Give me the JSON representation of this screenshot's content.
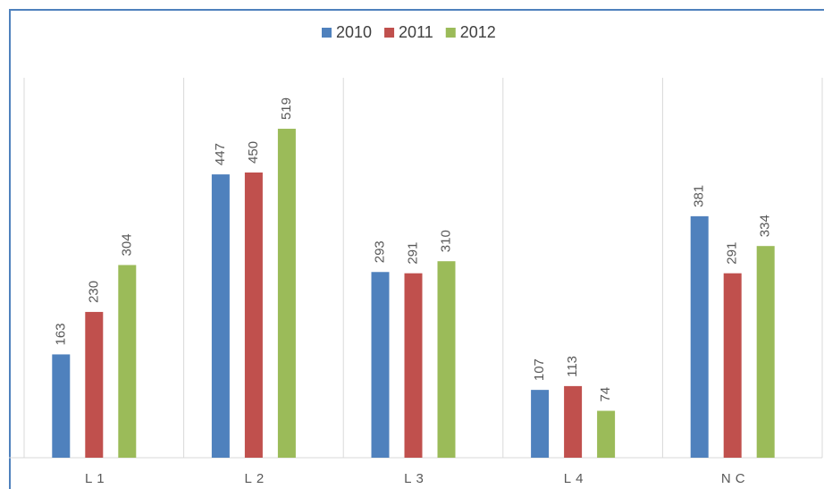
{
  "chart_data": {
    "type": "bar",
    "categories": [
      "L1",
      "L2",
      "L3",
      "L4",
      "NC"
    ],
    "series": [
      {
        "name": "2010",
        "color": "#4f81bd",
        "values": [
          163,
          447,
          293,
          107,
          381
        ]
      },
      {
        "name": "2011",
        "color": "#c0504d",
        "values": [
          230,
          450,
          291,
          113,
          291
        ]
      },
      {
        "name": "2012",
        "color": "#9bbb59",
        "values": [
          304,
          519,
          310,
          74,
          334
        ]
      }
    ],
    "legend": "top"
  }
}
